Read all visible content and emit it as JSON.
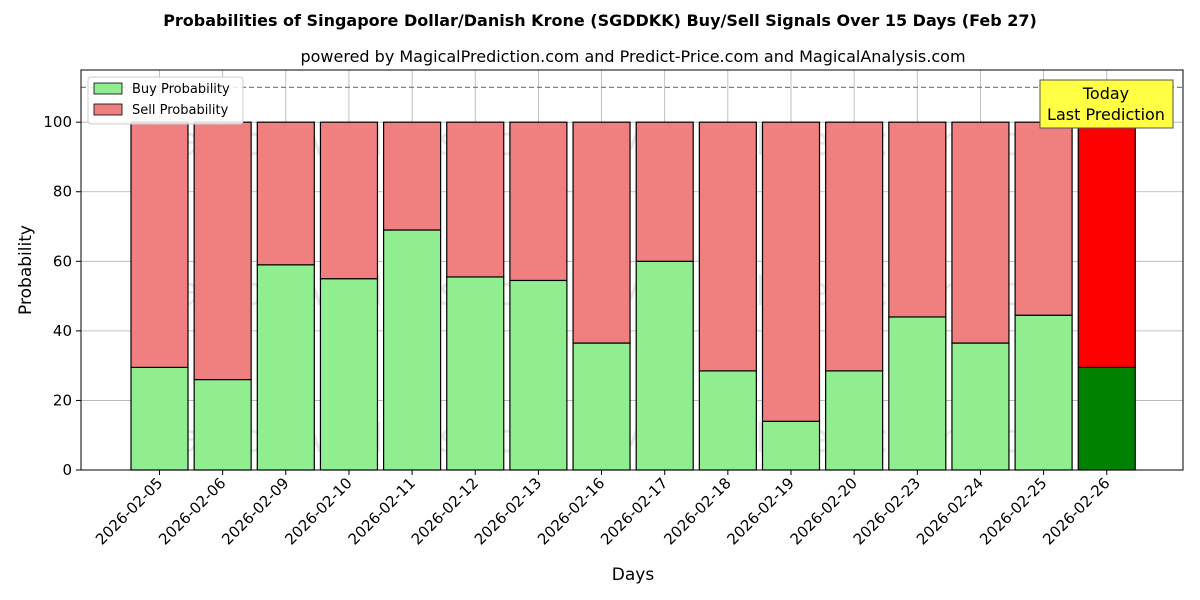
{
  "chart_data": {
    "type": "bar",
    "stacked": true,
    "title": "Probabilities of Singapore Dollar/Danish Krone (SGDDKK) Buy/Sell Signals Over 15 Days (Feb 27)",
    "subtitle": "powered by MagicalPrediction.com and Predict-Price.com and MagicalAnalysis.com",
    "xlabel": "Days",
    "ylabel": "Probability",
    "ylim": [
      0,
      115
    ],
    "yticks": [
      0,
      20,
      40,
      60,
      80,
      100
    ],
    "reference_line": 110,
    "grid": true,
    "legend_position": "top-left",
    "categories": [
      "2026-02-05",
      "2026-02-06",
      "2026-02-09",
      "2026-02-10",
      "2026-02-11",
      "2026-02-12",
      "2026-02-13",
      "2026-02-16",
      "2026-02-17",
      "2026-02-18",
      "2026-02-19",
      "2026-02-20",
      "2026-02-23",
      "2026-02-24",
      "2026-02-25",
      "2026-02-26"
    ],
    "series": [
      {
        "name": "Buy Probability",
        "color": "#90ee90",
        "highlight_color": "#008000",
        "values": [
          29.5,
          26,
          59,
          55,
          69,
          55.5,
          54.5,
          36.5,
          60,
          28.5,
          14,
          28.5,
          44,
          36.5,
          44.5,
          29.5
        ]
      },
      {
        "name": "Sell Probability",
        "color": "#f08080",
        "highlight_color": "#ff0000",
        "values": [
          70.5,
          74,
          41,
          45,
          31,
          44.5,
          45.5,
          63.5,
          40,
          71.5,
          86,
          71.5,
          56,
          63.5,
          55.5,
          70.5
        ]
      }
    ],
    "highlight_index": 15,
    "annotation": {
      "lines": [
        "Today",
        "Last Prediction"
      ],
      "bg": "#ffff44"
    },
    "watermarks": [
      "MagicalAnalysis.com",
      "MagicalPrediction.com"
    ]
  }
}
